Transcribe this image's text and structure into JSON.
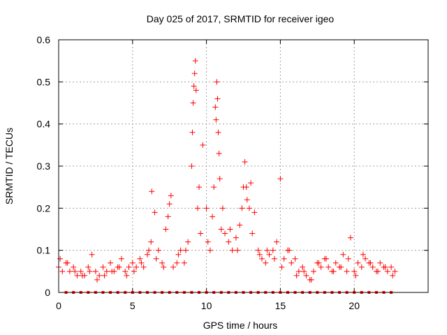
{
  "chart_data": {
    "type": "scatter",
    "title": "Day 025 of 2017, SRMTID for receiver igeo",
    "xlabel": "GPS time / hours",
    "ylabel": "SRMTID / TECUs",
    "xlim": [
      0,
      25
    ],
    "ylim": [
      0,
      0.6
    ],
    "x_ticks": [
      0,
      5,
      10,
      15,
      20
    ],
    "x_tick_labels": [
      "0",
      "5",
      "10",
      "15",
      "20"
    ],
    "y_ticks": [
      0,
      0.1,
      0.2,
      0.3,
      0.4,
      0.5,
      0.6
    ],
    "y_tick_labels": [
      "0",
      "0.1",
      "0.2",
      "0.3",
      "0.4",
      "0.5",
      "0.6"
    ],
    "grid": true,
    "marker_color": "#ff0000",
    "series": [
      {
        "name": "SRMTID",
        "marker": "plus",
        "x": [
          0.0,
          0.25,
          0.5,
          0.75,
          1.0,
          1.25,
          1.5,
          1.75,
          2.0,
          2.25,
          2.5,
          2.75,
          3.0,
          3.25,
          3.5,
          3.75,
          4.0,
          4.25,
          4.5,
          4.75,
          5.0,
          5.25,
          5.5,
          5.75,
          6.0,
          6.25,
          6.5,
          6.75,
          7.0,
          7.25,
          7.5,
          7.75,
          8.0,
          8.25,
          8.5,
          8.75,
          9.0,
          9.1,
          9.2,
          9.25,
          9.3,
          9.5,
          9.75,
          10.0,
          10.25,
          10.5,
          10.6,
          10.7,
          10.8,
          10.9,
          11.0,
          11.25,
          11.5,
          11.75,
          12.0,
          12.25,
          12.5,
          12.6,
          12.75,
          13.0,
          13.25,
          13.5,
          13.75,
          14.0,
          14.25,
          14.5,
          14.75,
          15.0,
          15.25,
          15.5,
          15.75,
          16.0,
          16.25,
          16.5,
          16.75,
          17.0,
          17.25,
          17.5,
          17.75,
          18.0,
          18.25,
          18.5,
          18.75,
          19.0,
          19.25,
          19.5,
          19.75,
          20.0,
          20.25,
          20.5,
          20.75,
          21.0,
          21.25,
          21.5,
          21.75,
          22.0,
          22.25,
          22.5,
          22.75,
          0.1,
          0.6,
          1.1,
          1.6,
          2.1,
          2.6,
          3.1,
          3.6,
          4.1,
          4.6,
          5.1,
          5.6,
          6.1,
          6.3,
          6.6,
          7.1,
          7.4,
          7.6,
          8.1,
          8.6,
          9.05,
          9.15,
          9.4,
          9.6,
          10.1,
          10.4,
          10.65,
          10.75,
          10.85,
          11.1,
          11.6,
          12.1,
          12.4,
          12.7,
          12.9,
          13.1,
          13.6,
          14.1,
          14.6,
          15.1,
          15.6,
          16.1,
          16.6,
          17.1,
          17.6,
          18.1,
          18.6,
          19.1,
          19.6,
          20.1,
          20.6,
          21.1,
          21.6,
          22.1,
          22.6
        ],
        "y": [
          0.06,
          0.05,
          0.07,
          0.05,
          0.06,
          0.04,
          0.05,
          0.04,
          0.06,
          0.09,
          0.05,
          0.04,
          0.06,
          0.05,
          0.07,
          0.05,
          0.06,
          0.08,
          0.05,
          0.06,
          0.07,
          0.06,
          0.08,
          0.06,
          0.09,
          0.12,
          0.19,
          0.1,
          0.07,
          0.15,
          0.21,
          0.06,
          0.07,
          0.1,
          0.07,
          0.12,
          0.3,
          0.45,
          0.52,
          0.55,
          0.48,
          0.25,
          0.35,
          0.2,
          0.1,
          0.25,
          0.44,
          0.5,
          0.38,
          0.27,
          0.15,
          0.14,
          0.12,
          0.1,
          0.13,
          0.16,
          0.25,
          0.31,
          0.22,
          0.26,
          0.19,
          0.1,
          0.08,
          0.07,
          0.09,
          0.1,
          0.12,
          0.27,
          0.08,
          0.1,
          0.07,
          0.08,
          0.05,
          0.06,
          0.04,
          0.03,
          0.05,
          0.07,
          0.06,
          0.08,
          0.06,
          0.05,
          0.07,
          0.06,
          0.09,
          0.05,
          0.13,
          0.05,
          0.07,
          0.06,
          0.08,
          0.07,
          0.06,
          0.05,
          0.07,
          0.06,
          0.05,
          0.06,
          0.05,
          0.08,
          0.07,
          0.05,
          0.04,
          0.05,
          0.03,
          0.04,
          0.05,
          0.06,
          0.04,
          0.05,
          0.07,
          0.1,
          0.24,
          0.08,
          0.06,
          0.18,
          0.23,
          0.09,
          0.1,
          0.38,
          0.49,
          0.2,
          0.14,
          0.12,
          0.18,
          0.41,
          0.46,
          0.33,
          0.2,
          0.15,
          0.1,
          0.2,
          0.25,
          0.2,
          0.14,
          0.09,
          0.1,
          0.08,
          0.06,
          0.1,
          0.04,
          0.05,
          0.03,
          0.07,
          0.08,
          0.05,
          0.06,
          0.08,
          0.04,
          0.09,
          0.07,
          0.05,
          0.06,
          0.04
        ],
        "baseline_markers_x": [
          0.5,
          1.0,
          1.5,
          2.0,
          2.5,
          3.0,
          3.5,
          4.0,
          4.5,
          5.0,
          5.5,
          6.0,
          6.5,
          7.0,
          7.5,
          8.0,
          8.5,
          9.0,
          9.5,
          10.0,
          10.5,
          11.0,
          11.5,
          12.0,
          12.5,
          13.0,
          13.5,
          14.0,
          14.5,
          15.0,
          15.5,
          16.0,
          16.5,
          17.0,
          17.5,
          18.0,
          18.5,
          19.0,
          19.5,
          20.0,
          20.5,
          21.0,
          21.5,
          22.0,
          22.5
        ],
        "baseline_value": 0
      }
    ]
  }
}
